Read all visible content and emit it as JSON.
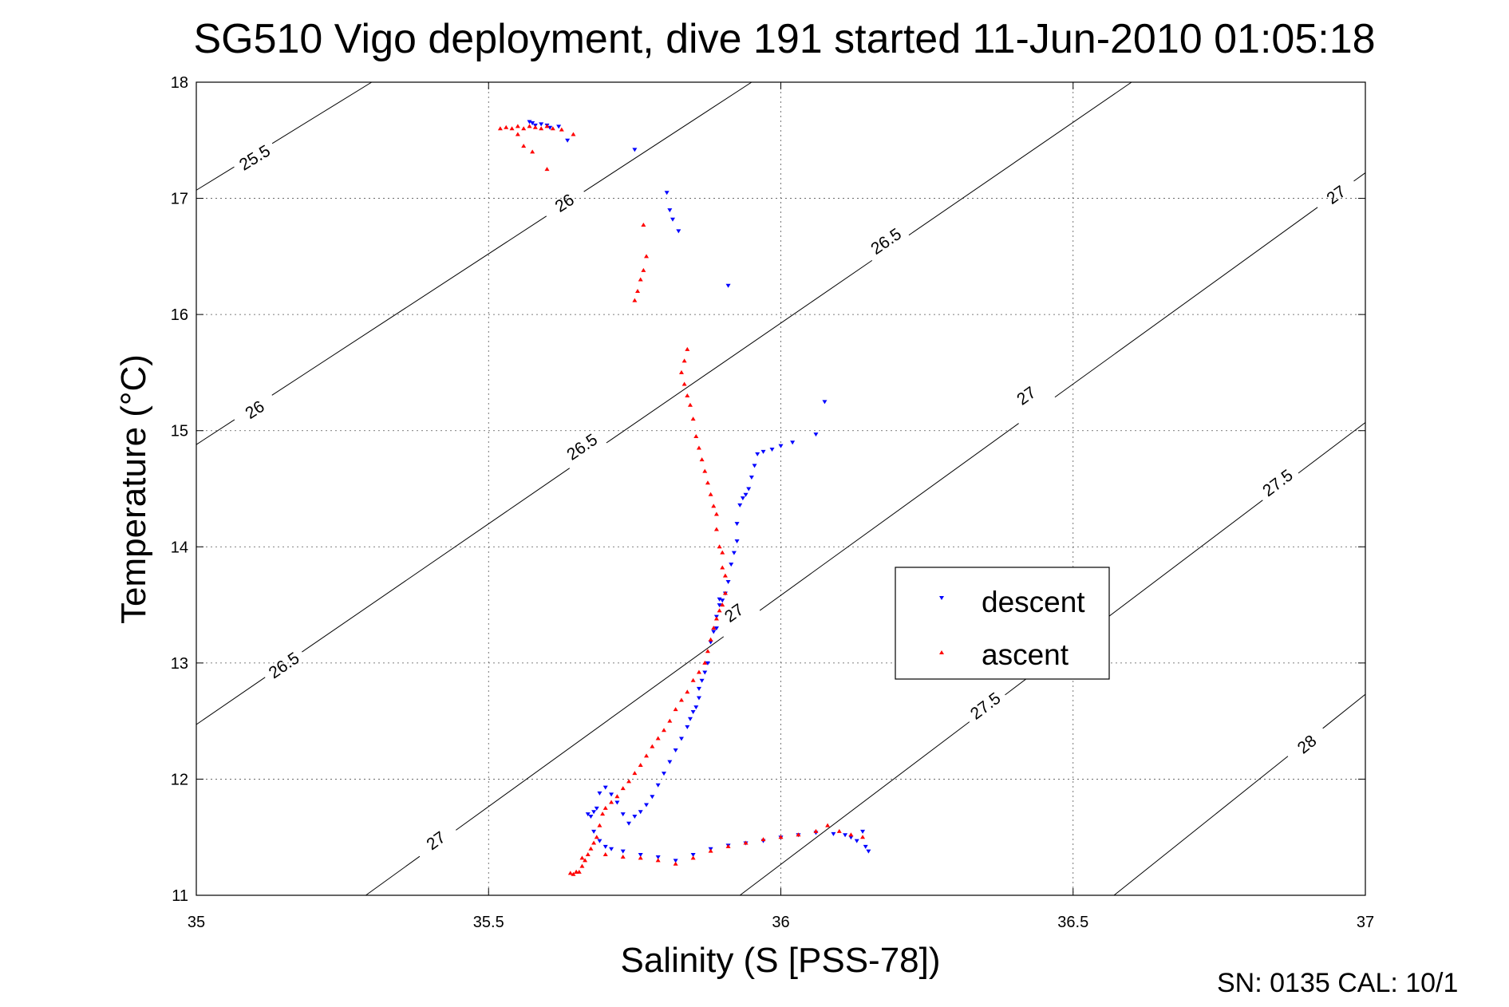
{
  "chart_data": {
    "type": "scatter",
    "title": "SG510 Vigo deployment, dive 191 started 11-Jun-2010 01:05:18",
    "xlabel": "Salinity (S [PSS-78])",
    "ylabel": "Temperature (°C)",
    "xlim": [
      35,
      37
    ],
    "ylim": [
      11,
      18
    ],
    "xticks": [
      "35",
      "35.5",
      "36",
      "36.5",
      "37"
    ],
    "yticks": [
      "11",
      "12",
      "13",
      "14",
      "15",
      "16",
      "17",
      "18"
    ],
    "grid": true,
    "legend_position": "center-right",
    "footer": "SN: 0135  CAL: 10/1",
    "density_contours": [
      {
        "label": "25.5",
        "points": [
          [
            35.0,
            17.07
          ],
          [
            35.3,
            18.0
          ]
        ],
        "label_at": [
          [
            35.1,
            17.35
          ]
        ]
      },
      {
        "label": "26",
        "points": [
          [
            35.0,
            14.88
          ],
          [
            35.95,
            18.0
          ]
        ],
        "label_at": [
          [
            35.1,
            15.18
          ],
          [
            35.63,
            16.96
          ]
        ]
      },
      {
        "label": "26.5",
        "points": [
          [
            35.0,
            12.47
          ],
          [
            36.6,
            18.0
          ]
        ],
        "label_at": [
          [
            35.15,
            12.98
          ],
          [
            35.66,
            14.86
          ],
          [
            36.18,
            16.63
          ]
        ]
      },
      {
        "label": "27",
        "points": [
          [
            35.29,
            11.0
          ],
          [
            37.0,
            17.22
          ]
        ],
        "label_at": [
          [
            35.41,
            11.47
          ],
          [
            36.42,
            15.3
          ],
          [
            35.92,
            13.43
          ],
          [
            36.95,
            17.03
          ]
        ]
      },
      {
        "label": "27.5",
        "points": [
          [
            35.93,
            11.0
          ],
          [
            37.0,
            15.07
          ]
        ],
        "label_at": [
          [
            36.35,
            12.63
          ],
          [
            36.85,
            14.55
          ]
        ]
      },
      {
        "label": "28",
        "points": [
          [
            36.57,
            11.0
          ],
          [
            37.0,
            12.73
          ]
        ],
        "label_at": [
          [
            36.9,
            12.3
          ]
        ]
      }
    ],
    "series": [
      {
        "name": "descent",
        "color": "#0000ff",
        "marker": "triangle-down",
        "x": [
          35.57,
          35.575,
          35.58,
          35.59,
          35.6,
          35.605,
          35.62,
          35.635,
          35.75,
          35.805,
          35.81,
          35.815,
          35.825,
          35.91,
          36.075,
          36.06,
          36.02,
          36.0,
          35.985,
          35.97,
          35.96,
          35.955,
          35.95,
          35.945,
          35.94,
          35.935,
          35.93,
          35.925,
          35.925,
          35.92,
          35.915,
          35.91,
          35.905,
          35.9,
          35.895,
          35.895,
          35.89,
          35.89,
          35.885,
          35.88,
          35.875,
          35.87,
          35.865,
          35.86,
          35.86,
          35.855,
          35.85,
          35.845,
          35.84,
          35.83,
          35.82,
          35.81,
          35.8,
          35.79,
          35.78,
          35.77,
          35.76,
          35.75,
          35.74,
          35.73,
          35.72,
          35.71,
          35.7,
          35.69,
          35.685,
          35.68,
          35.675,
          35.67,
          35.68,
          35.69,
          35.7,
          35.71,
          35.73,
          35.76,
          35.79,
          35.82,
          35.85,
          35.88,
          35.91,
          35.94,
          35.97,
          36.0,
          36.03,
          36.06,
          36.09,
          36.11,
          36.12,
          36.13,
          36.14,
          36.145,
          36.15
        ],
        "y": [
          17.66,
          17.65,
          17.63,
          17.64,
          17.63,
          17.61,
          17.62,
          17.5,
          17.42,
          17.05,
          16.9,
          16.82,
          16.72,
          16.25,
          15.25,
          14.97,
          14.9,
          14.87,
          14.84,
          14.82,
          14.8,
          14.7,
          14.6,
          14.5,
          14.45,
          14.42,
          14.36,
          14.2,
          14.05,
          13.95,
          13.85,
          13.7,
          13.6,
          13.54,
          13.5,
          13.55,
          13.4,
          13.3,
          13.27,
          13.18,
          13.0,
          12.92,
          12.85,
          12.78,
          12.7,
          12.62,
          12.58,
          12.52,
          12.45,
          12.35,
          12.25,
          12.15,
          12.05,
          11.95,
          11.85,
          11.78,
          11.72,
          11.68,
          11.62,
          11.7,
          11.8,
          11.87,
          11.93,
          11.88,
          11.75,
          11.72,
          11.68,
          11.7,
          11.55,
          11.47,
          11.42,
          11.4,
          11.38,
          11.35,
          11.33,
          11.3,
          11.35,
          11.4,
          11.43,
          11.45,
          11.47,
          11.5,
          11.52,
          11.54,
          11.53,
          11.52,
          11.5,
          11.47,
          11.55,
          11.42,
          11.38
        ]
      },
      {
        "name": "ascent",
        "color": "#ff0000",
        "marker": "triangle-up",
        "x": [
          35.52,
          35.53,
          35.54,
          35.55,
          35.56,
          35.57,
          35.58,
          35.59,
          35.6,
          35.61,
          35.625,
          35.645,
          35.55,
          35.56,
          35.575,
          35.6,
          35.765,
          35.77,
          35.765,
          35.76,
          35.755,
          35.75,
          35.84,
          35.835,
          35.83,
          35.835,
          35.84,
          35.845,
          35.85,
          35.855,
          35.86,
          35.865,
          35.87,
          35.875,
          35.88,
          35.885,
          35.89,
          35.89,
          35.895,
          35.9,
          35.9,
          35.905,
          35.905,
          35.9,
          35.895,
          35.89,
          35.885,
          35.88,
          35.875,
          35.87,
          35.86,
          35.85,
          35.84,
          35.83,
          35.82,
          35.81,
          35.8,
          35.79,
          35.78,
          35.77,
          35.76,
          35.75,
          35.74,
          35.73,
          35.72,
          35.71,
          35.7,
          35.695,
          35.69,
          35.685,
          35.68,
          35.675,
          35.67,
          35.665,
          35.66,
          35.655,
          35.65,
          35.645,
          35.64,
          35.65,
          35.66,
          35.7,
          35.73,
          35.76,
          35.79,
          35.82,
          35.85,
          35.88,
          35.91,
          35.94,
          35.97,
          36.0,
          36.03,
          36.06,
          36.08,
          36.1,
          36.12,
          36.14
        ],
        "y": [
          17.6,
          17.61,
          17.6,
          17.62,
          17.6,
          17.62,
          17.61,
          17.6,
          17.62,
          17.6,
          17.59,
          17.55,
          17.55,
          17.45,
          17.4,
          17.25,
          16.77,
          16.5,
          16.38,
          16.3,
          16.2,
          16.12,
          15.7,
          15.6,
          15.5,
          15.4,
          15.3,
          15.22,
          15.1,
          14.95,
          14.85,
          14.75,
          14.65,
          14.55,
          14.45,
          14.35,
          14.28,
          14.15,
          14.0,
          13.95,
          13.82,
          13.75,
          13.6,
          13.5,
          13.45,
          13.38,
          13.3,
          13.2,
          13.1,
          13.0,
          12.92,
          12.85,
          12.75,
          12.68,
          12.6,
          12.5,
          12.42,
          12.35,
          12.28,
          12.2,
          12.12,
          12.05,
          11.98,
          11.92,
          11.85,
          11.8,
          11.75,
          11.7,
          11.6,
          11.5,
          11.45,
          11.4,
          11.35,
          11.3,
          11.25,
          11.2,
          11.2,
          11.18,
          11.19,
          11.2,
          11.32,
          11.35,
          11.33,
          11.32,
          11.3,
          11.27,
          11.32,
          11.38,
          11.42,
          11.45,
          11.48,
          11.5,
          11.52,
          11.55,
          11.6,
          11.55,
          11.52,
          11.5
        ]
      }
    ]
  }
}
